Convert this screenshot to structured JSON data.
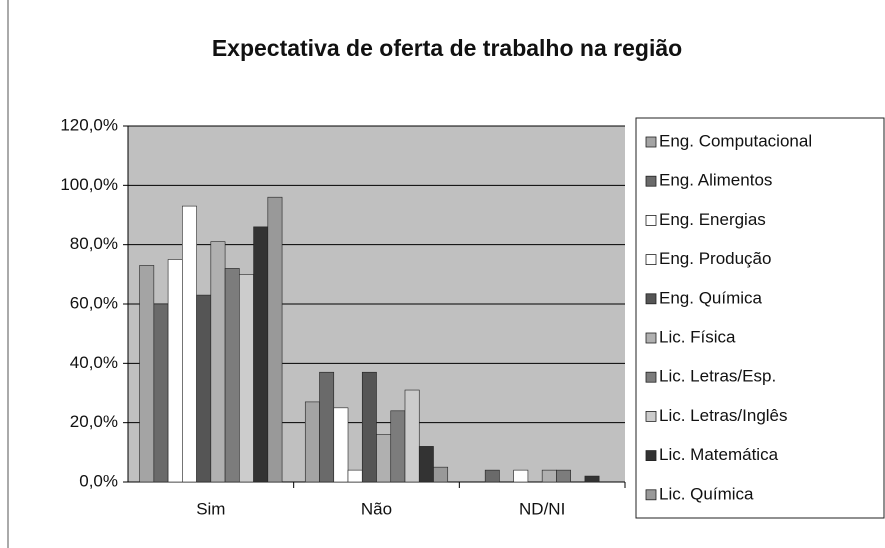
{
  "chart_data": {
    "type": "bar",
    "title": "Expectativa de oferta de trabalho na região",
    "categories": [
      "Sim",
      "Não",
      "ND/NI"
    ],
    "series": [
      {
        "name": "Eng. Computacional",
        "color": "#a4a4a4",
        "values": [
          73,
          27,
          0
        ]
      },
      {
        "name": "Eng. Alimentos",
        "color": "#6a6a6a",
        "values": [
          60,
          37,
          4
        ]
      },
      {
        "name": "Eng. Energias",
        "color": "#ffffff",
        "values": [
          75,
          25,
          0
        ]
      },
      {
        "name": "Eng. Produção",
        "color": "#ffffff",
        "values": [
          93,
          4,
          4
        ]
      },
      {
        "name": "Eng. Química",
        "color": "#555555",
        "values": [
          63,
          37,
          0
        ]
      },
      {
        "name": "Lic. Física",
        "color": "#b0b0b0",
        "values": [
          81,
          16,
          4
        ]
      },
      {
        "name": "Lic. Letras/Esp.",
        "color": "#7c7c7c",
        "values": [
          72,
          24,
          4
        ]
      },
      {
        "name": "Lic. Letras/Inglês",
        "color": "#cccccc",
        "values": [
          70,
          31,
          0
        ]
      },
      {
        "name": "Lic. Matemática",
        "color": "#333333",
        "values": [
          86,
          12,
          2
        ]
      },
      {
        "name": "Lic. Química",
        "color": "#999999",
        "values": [
          96,
          5,
          0
        ]
      }
    ],
    "ylim": [
      0,
      120
    ],
    "yticks": [
      {
        "value": 0,
        "label": "0,0%"
      },
      {
        "value": 20,
        "label": "20,0%"
      },
      {
        "value": 40,
        "label": "40,0%"
      },
      {
        "value": 60,
        "label": "60,0%"
      },
      {
        "value": 80,
        "label": "80,0%"
      },
      {
        "value": 100,
        "label": "100,0%"
      },
      {
        "value": 120,
        "label": "120,0%"
      }
    ],
    "grid": true,
    "legend": "right"
  }
}
